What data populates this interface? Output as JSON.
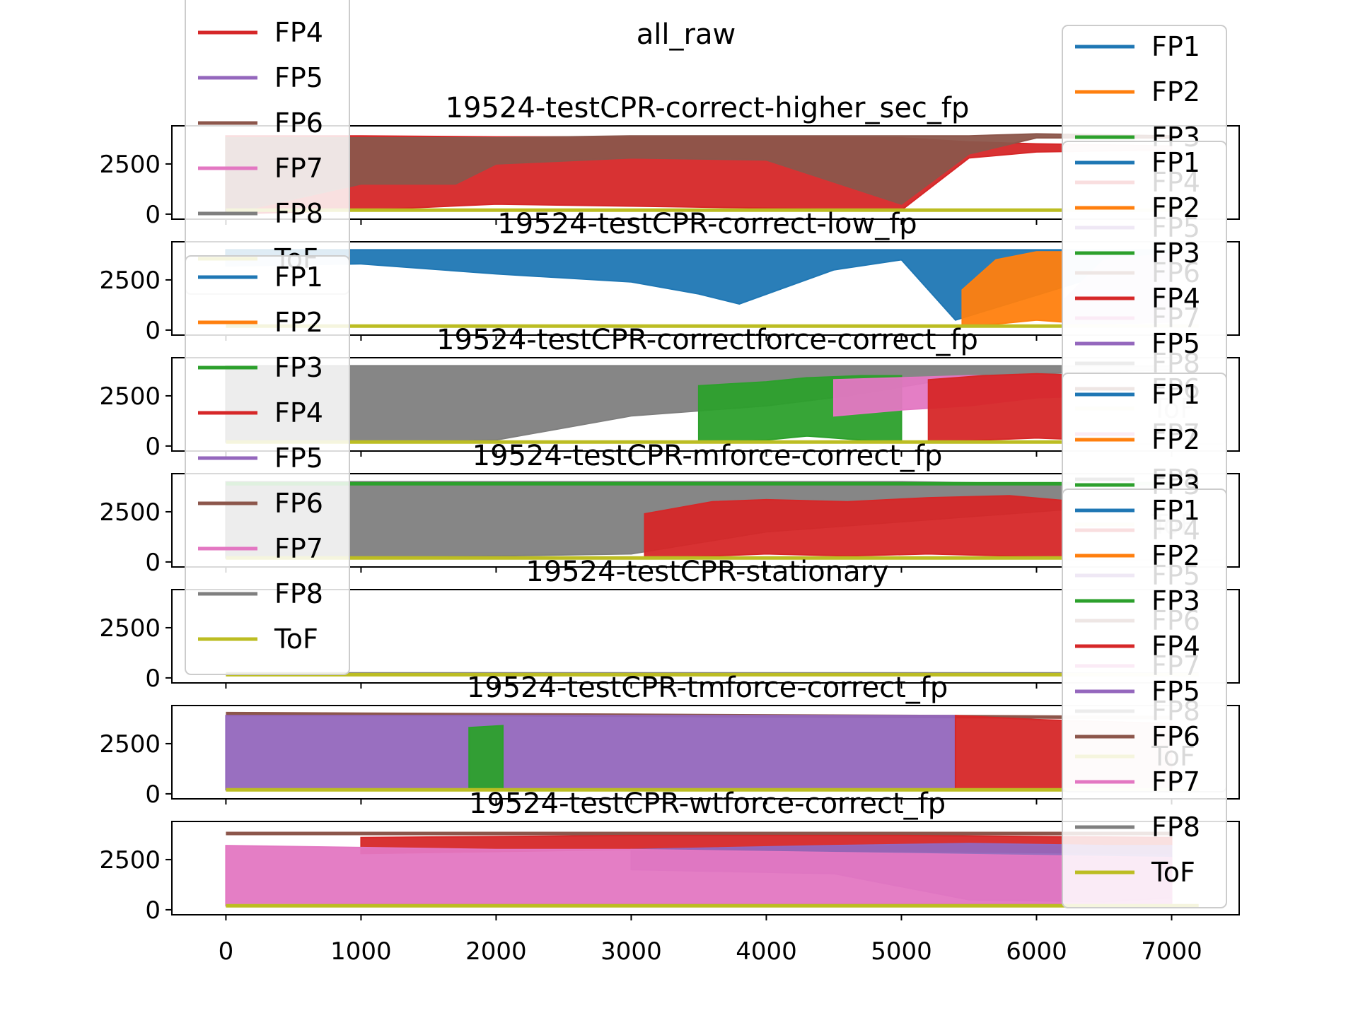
{
  "figure_title": "all_raw",
  "series_colors": {
    "FP1": "#1f77b4",
    "FP2": "#ff7f0e",
    "FP3": "#2ca02c",
    "FP4": "#d62728",
    "FP5": "#9467bd",
    "FP6": "#8c564b",
    "FP7": "#e377c2",
    "FP8": "#7f7f7f",
    "ToF": "#bcbd22"
  },
  "legend_series": [
    "FP1",
    "FP2",
    "FP3",
    "FP4",
    "FP5",
    "FP6",
    "FP7",
    "FP8",
    "ToF"
  ],
  "chart_data": [
    {
      "type": "line",
      "title": "19524-testCPR-correct-higher_sec_fp",
      "xlim": [
        -400,
        7500
      ],
      "ylim": [
        -250,
        4400
      ],
      "yticks": [
        0,
        2500
      ],
      "legend": "right",
      "series": [
        {
          "name": "FP4",
          "x": [
            0,
            1000,
            2000,
            3000,
            4000,
            5000,
            5500,
            6000,
            7000
          ],
          "y_upper": [
            3900,
            3900,
            3850,
            3850,
            3850,
            3800,
            3600,
            3500,
            3400
          ],
          "y_lower": [
            0,
            200,
            500,
            400,
            300,
            200,
            2800,
            3100,
            3200
          ]
        },
        {
          "name": "FP6",
          "x": [
            0,
            1000,
            1700,
            2000,
            3000,
            4000,
            5000,
            5500,
            6000,
            7000
          ],
          "y_upper": [
            3800,
            3800,
            3800,
            3800,
            3900,
            3900,
            3900,
            3900,
            4000,
            3900
          ],
          "y_lower": [
            0,
            1500,
            1500,
            2500,
            2800,
            2700,
            500,
            3000,
            3800,
            3800
          ]
        },
        {
          "name": "ToF",
          "x": [
            0,
            7200
          ],
          "y": [
            200,
            200
          ]
        }
      ]
    },
    {
      "type": "line",
      "title": "19524-testCPR-correct-low_fp",
      "xlim": [
        -400,
        7500
      ],
      "ylim": [
        -250,
        4400
      ],
      "yticks": [
        0,
        2500
      ],
      "legend": "right",
      "series": [
        {
          "name": "FP1",
          "x": [
            0,
            1000,
            2000,
            3000,
            3500,
            3800,
            4500,
            5000,
            5400,
            7000
          ],
          "y_upper": [
            4000,
            4000,
            4000,
            4000,
            4000,
            4000,
            4000,
            4000,
            4000,
            4000
          ],
          "y_lower": [
            3200,
            3300,
            2800,
            2400,
            1800,
            1300,
            3000,
            3500,
            500,
            3800
          ]
        },
        {
          "name": "FP2",
          "x": [
            5450,
            5700,
            6000,
            6200
          ],
          "y_upper": [
            2000,
            3500,
            3900,
            3900
          ],
          "y_lower": [
            200,
            300,
            500,
            400
          ]
        },
        {
          "name": "FP5",
          "x": [
            6200,
            6500,
            7000
          ],
          "y_upper": [
            1500,
            3500,
            3800
          ],
          "y_lower": [
            200,
            300,
            400
          ]
        },
        {
          "name": "ToF",
          "x": [
            0,
            7200
          ],
          "y": [
            200,
            200
          ]
        }
      ]
    },
    {
      "type": "line",
      "title": "19524-testCPR-correctforce-correct_fp",
      "xlim": [
        -400,
        7500
      ],
      "ylim": [
        -250,
        4400
      ],
      "yticks": [
        0,
        2500
      ],
      "legend": "left",
      "series": [
        {
          "name": "FP8",
          "x": [
            0,
            1000,
            2000,
            3000,
            4000,
            4600,
            5500,
            6500,
            7000
          ],
          "y_upper": [
            4000,
            4000,
            4000,
            4000,
            4000,
            4000,
            4000,
            4000,
            4000
          ],
          "y_lower": [
            200,
            200,
            300,
            1500,
            2000,
            2500,
            3500,
            3700,
            3800
          ]
        },
        {
          "name": "FP3",
          "x": [
            3500,
            4000,
            4300,
            4700,
            5000
          ],
          "y_upper": [
            3000,
            3200,
            3400,
            3500,
            3500
          ],
          "y_lower": [
            200,
            300,
            500,
            300,
            200
          ]
        },
        {
          "name": "FP7",
          "x": [
            4500,
            5000,
            5500,
            6000,
            7000
          ],
          "y_upper": [
            3300,
            3400,
            3500,
            3500,
            3600
          ],
          "y_lower": [
            1500,
            1800,
            2000,
            2400,
            2600
          ]
        },
        {
          "name": "FP4",
          "x": [
            5200,
            5600,
            6000,
            6400
          ],
          "y_upper": [
            3300,
            3500,
            3600,
            3500
          ],
          "y_lower": [
            200,
            300,
            400,
            300
          ]
        },
        {
          "name": "ToF",
          "x": [
            0,
            7200
          ],
          "y": [
            200,
            200
          ]
        }
      ]
    },
    {
      "type": "line",
      "title": "19524-testCPR-mforce-correct_fp",
      "xlim": [
        -400,
        7500
      ],
      "ylim": [
        -250,
        4400
      ],
      "yticks": [
        0,
        2500
      ],
      "legend": "right",
      "series": [
        {
          "name": "FP8",
          "x": [
            0,
            1000,
            2000,
            3000,
            4000,
            5000,
            6000,
            7000
          ],
          "y_upper": [
            4000,
            4000,
            4000,
            4000,
            4000,
            4000,
            3900,
            3900
          ],
          "y_lower": [
            200,
            200,
            300,
            400,
            1500,
            2000,
            2500,
            3000
          ]
        },
        {
          "name": "FP4",
          "x": [
            3100,
            3600,
            4000,
            4600,
            5200,
            5800,
            6300
          ],
          "y_upper": [
            2400,
            3000,
            3100,
            3000,
            3200,
            3300,
            3000
          ],
          "y_lower": [
            200,
            300,
            400,
            300,
            400,
            300,
            200
          ]
        },
        {
          "name": "FP3",
          "x": [
            0,
            7000
          ],
          "y": [
            3900,
            3900
          ]
        },
        {
          "name": "ToF",
          "x": [
            0,
            7200
          ],
          "y": [
            200,
            200
          ]
        }
      ]
    },
    {
      "type": "line",
      "title": "19524-testCPR-stationary",
      "xlim": [
        -400,
        7500
      ],
      "ylim": [
        -250,
        4400
      ],
      "yticks": [
        0,
        2500
      ],
      "legend": "none",
      "series": [
        {
          "name": "FP8",
          "x": [
            0,
            7200
          ],
          "y": [
            200,
            200
          ]
        },
        {
          "name": "ToF",
          "x": [
            0,
            7200
          ],
          "y": [
            160,
            160
          ]
        }
      ]
    },
    {
      "type": "line",
      "title": "19524-testCPR-tmforce-correct_fp",
      "xlim": [
        -400,
        7500
      ],
      "ylim": [
        -250,
        4400
      ],
      "yticks": [
        0,
        2500
      ],
      "legend": "right",
      "series": [
        {
          "name": "FP6",
          "x": [
            0,
            7000
          ],
          "y": [
            4000,
            3800
          ]
        },
        {
          "name": "FP5",
          "x": [
            0,
            1000,
            2000,
            3000,
            4000,
            5000,
            5400
          ],
          "y_upper": [
            3900,
            3900,
            3900,
            3900,
            3900,
            3900,
            3900
          ],
          "y_lower": [
            200,
            200,
            200,
            200,
            200,
            200,
            200
          ]
        },
        {
          "name": "FP3",
          "x": [
            1800,
            2050
          ],
          "y_upper": [
            3300,
            3400
          ],
          "y_lower": [
            200,
            200
          ]
        },
        {
          "name": "FP4",
          "x": [
            5400,
            6000,
            7000
          ],
          "y_upper": [
            3900,
            3700,
            3500
          ],
          "y_lower": [
            200,
            200,
            200
          ]
        },
        {
          "name": "ToF",
          "x": [
            0,
            7200
          ],
          "y": [
            200,
            200
          ]
        }
      ]
    },
    {
      "type": "line",
      "title": "19524-testCPR-wtforce-correct_fp",
      "xlim": [
        -400,
        7500
      ],
      "ylim": [
        -250,
        4400
      ],
      "yticks": [
        0,
        2500
      ],
      "legend": "right",
      "series": [
        {
          "name": "FP6",
          "x": [
            0,
            7000
          ],
          "y": [
            3800,
            3800
          ]
        },
        {
          "name": "FP4",
          "x": [
            1000,
            3000,
            5000,
            7000
          ],
          "y_upper": [
            3600,
            3700,
            3700,
            3600
          ],
          "y_lower": [
            2800,
            3000,
            2900,
            2800
          ]
        },
        {
          "name": "FP5",
          "x": [
            3000,
            4500,
            5500,
            6500,
            7000
          ],
          "y_upper": [
            3000,
            3200,
            3300,
            3200,
            3200
          ],
          "y_lower": [
            2000,
            1800,
            500,
            400,
            600
          ]
        },
        {
          "name": "FP7",
          "x": [
            0,
            1000,
            2000,
            3000,
            4000,
            5000,
            6000,
            7000
          ],
          "y_upper": [
            3200,
            3100,
            3000,
            3000,
            2900,
            2800,
            2700,
            2600
          ],
          "y_lower": [
            200,
            300,
            300,
            300,
            300,
            300,
            300,
            300
          ]
        },
        {
          "name": "ToF",
          "x": [
            0,
            7200
          ],
          "y": [
            200,
            200
          ]
        }
      ]
    }
  ],
  "shared_xaxis": {
    "xticks": [
      0,
      1000,
      2000,
      3000,
      4000,
      5000,
      6000,
      7000
    ]
  }
}
